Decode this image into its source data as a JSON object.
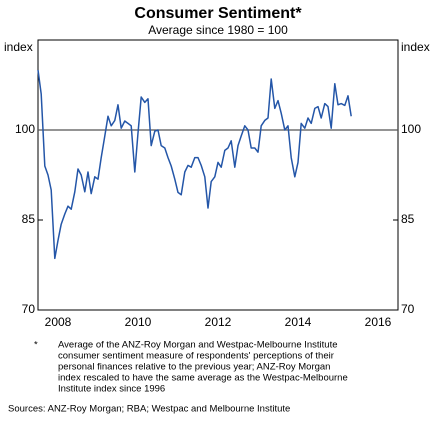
{
  "chart_data": {
    "type": "line",
    "title": "Consumer Sentiment*",
    "subtitle": "Average since 1980 = 100",
    "y_label": "index",
    "y2_label": "index",
    "x": [
      2008,
      2008.08,
      2008.17,
      2008.25,
      2008.33,
      2008.42,
      2008.5,
      2008.58,
      2008.67,
      2008.75,
      2008.83,
      2008.92,
      2009,
      2009.08,
      2009.17,
      2009.25,
      2009.33,
      2009.42,
      2009.5,
      2009.58,
      2009.67,
      2009.75,
      2009.83,
      2009.92,
      2010,
      2010.08,
      2010.17,
      2010.25,
      2010.33,
      2010.42,
      2010.5,
      2010.58,
      2010.67,
      2010.75,
      2010.83,
      2010.92,
      2011,
      2011.08,
      2011.17,
      2011.25,
      2011.33,
      2011.42,
      2011.5,
      2011.58,
      2011.67,
      2011.75,
      2011.83,
      2011.92,
      2012,
      2012.08,
      2012.17,
      2012.25,
      2012.33,
      2012.42,
      2012.5,
      2012.58,
      2012.67,
      2012.75,
      2012.83,
      2012.92,
      2013,
      2013.08,
      2013.17,
      2013.25,
      2013.33,
      2013.42,
      2013.5,
      2013.58,
      2013.67,
      2013.75,
      2013.83,
      2013.92,
      2014,
      2014.08,
      2014.17,
      2014.25,
      2014.33,
      2014.42,
      2014.5,
      2014.58,
      2014.67,
      2014.75,
      2014.83,
      2014.92,
      2015,
      2015.08,
      2015.17,
      2015.25,
      2015.33,
      2015.42,
      2015.5,
      2015.58,
      2015.67,
      2015.75,
      2015.83
    ],
    "values": [
      110,
      106,
      94,
      92.5,
      90,
      78.6,
      81.6,
      84.3,
      86,
      87.3,
      86.8,
      89.7,
      93.5,
      92.5,
      89.7,
      93,
      89.4,
      92.2,
      91.8,
      95.4,
      99,
      102.3,
      100.7,
      101.6,
      104.2,
      100.3,
      101.5,
      101.1,
      100.7,
      93,
      99.5,
      105.5,
      104.6,
      105.2,
      97.4,
      99.8,
      100,
      97.4,
      97,
      95.4,
      94,
      91.8,
      89.6,
      89.2,
      93,
      94.1,
      93.8,
      95.4,
      95.4,
      94.1,
      92.2,
      87,
      91.4,
      92.2,
      94.6,
      93.8,
      96.6,
      97,
      98.2,
      93.8,
      97.4,
      99,
      100.7,
      100,
      97,
      97,
      96.3,
      100.7,
      101.6,
      102,
      108.5,
      103.6,
      104.9,
      102.8,
      100,
      100.7,
      95.4,
      92.2,
      94.6,
      101.1,
      100.3,
      102,
      101.1,
      103.6,
      103.9,
      102,
      104.4,
      103.9,
      100.3,
      107.7,
      104.2,
      104.4,
      104.1,
      105.7,
      102.3
    ],
    "color": "#2456a8",
    "xlim": [
      2008,
      2017
    ],
    "xticks": [
      {
        "value": 2008.5,
        "label": "2008"
      },
      {
        "value": 2010.5,
        "label": "2010"
      },
      {
        "value": 2012.5,
        "label": "2012"
      },
      {
        "value": 2014.5,
        "label": "2014"
      },
      {
        "value": 2016.5,
        "label": "2016"
      }
    ],
    "ylim": [
      70,
      115
    ],
    "yticks": [
      70,
      85,
      100
    ],
    "y2lim": [
      70,
      115
    ],
    "y2ticks": [
      70,
      85,
      100
    ],
    "reference_line": 100,
    "notes": {
      "marker": "*",
      "lines": [
        "Average of the ANZ-Roy Morgan and Westpac-Melbourne Institute",
        "consumer sentiment measure of respondents' perceptions of their",
        "personal finances relative to the previous year; ANZ-Roy Morgan",
        "index rescaled to have the same average as the Westpac-Melbourne",
        "Institute index since 1996"
      ]
    },
    "sources": "Sources:   ANZ-Roy Morgan; RBA; Westpac and Melbourne Institute"
  }
}
